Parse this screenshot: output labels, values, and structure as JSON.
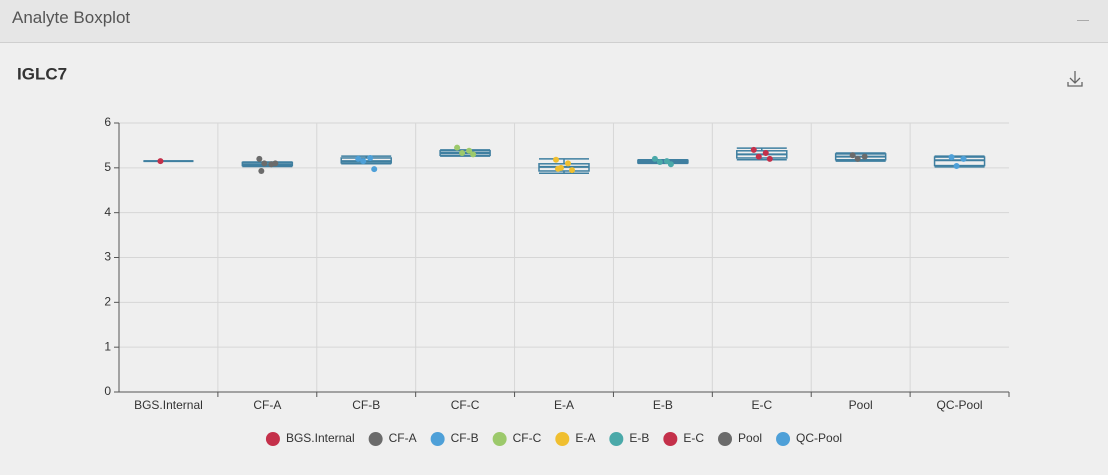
{
  "header": {
    "title": "Analyte Boxplot"
  },
  "chart_data": {
    "type": "boxplot",
    "title": "IGLC7",
    "categories": [
      "BGS.Internal",
      "CF-A",
      "CF-B",
      "CF-C",
      "E-A",
      "E-B",
      "E-C",
      "Pool",
      "QC-Pool"
    ],
    "ylim": [
      0,
      6
    ],
    "yticks": [
      0,
      1,
      2,
      3,
      4,
      5,
      6
    ],
    "grid": true,
    "box_color": "#3f7fa0",
    "boxes": [
      {
        "min": 5.15,
        "q1": 5.15,
        "median": 5.15,
        "q3": 5.15,
        "max": 5.15
      },
      {
        "min": 5.03,
        "q1": 5.05,
        "median": 5.08,
        "q3": 5.12,
        "max": 5.13
      },
      {
        "min": 5.09,
        "q1": 5.11,
        "median": 5.15,
        "q3": 5.22,
        "max": 5.26
      },
      {
        "min": 5.26,
        "q1": 5.28,
        "median": 5.33,
        "q3": 5.38,
        "max": 5.4
      },
      {
        "min": 4.88,
        "q1": 4.93,
        "median": 5.02,
        "q3": 5.09,
        "max": 5.2
      },
      {
        "min": 5.1,
        "q1": 5.11,
        "median": 5.14,
        "q3": 5.17,
        "max": 5.18
      },
      {
        "min": 5.18,
        "q1": 5.22,
        "median": 5.3,
        "q3": 5.38,
        "max": 5.44
      },
      {
        "min": 5.15,
        "q1": 5.18,
        "median": 5.25,
        "q3": 5.31,
        "max": 5.33
      },
      {
        "min": 5.02,
        "q1": 5.05,
        "median": 5.17,
        "q3": 5.24,
        "max": 5.26
      }
    ],
    "series": [
      {
        "name": "BGS.Internal",
        "color": "#c4304a",
        "values": [
          5.15
        ]
      },
      {
        "name": "CF-A",
        "color": "#6b6b6b",
        "values": [
          5.2,
          5.08,
          5.1,
          5.1,
          4.93
        ]
      },
      {
        "name": "CF-B",
        "color": "#4ea0d8",
        "values": [
          5.2,
          5.22,
          5.15,
          4.97
        ]
      },
      {
        "name": "CF-C",
        "color": "#9cc96b",
        "values": [
          5.45,
          5.38,
          5.33,
          5.3
        ]
      },
      {
        "name": "E-A",
        "color": "#f0bf30",
        "values": [
          5.18,
          5.1,
          5.0,
          4.95,
          4.98
        ]
      },
      {
        "name": "E-B",
        "color": "#4aa9a9",
        "values": [
          5.2,
          5.15,
          5.13,
          5.08
        ]
      },
      {
        "name": "E-C",
        "color": "#c4304a",
        "values": [
          5.4,
          5.33,
          5.25,
          5.2
        ]
      },
      {
        "name": "Pool",
        "color": "#6b6b6b",
        "values": [
          5.28,
          5.25,
          5.2
        ]
      },
      {
        "name": "QC-Pool",
        "color": "#4ea0d8",
        "values": [
          5.24,
          5.2,
          5.04
        ]
      }
    ]
  }
}
